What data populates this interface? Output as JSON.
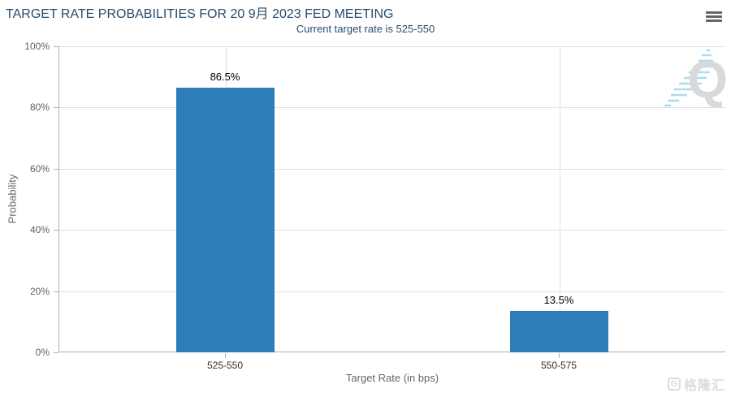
{
  "chart_data": {
    "type": "bar",
    "title": "TARGET RATE PROBABILITIES FOR 20 9月 2023 FED MEETING",
    "subtitle": "Current target rate is 525-550",
    "categories": [
      "525-550",
      "550-575"
    ],
    "values": [
      86.5,
      13.5
    ],
    "value_labels": [
      "86.5%",
      "13.5%"
    ],
    "xlabel": "Target Rate (in bps)",
    "ylabel": "Probability",
    "ylim": [
      0,
      100
    ],
    "yticks": [
      0,
      20,
      40,
      60,
      80,
      100
    ],
    "ytick_labels": [
      "0%",
      "20%",
      "40%",
      "60%",
      "80%",
      "100%"
    ],
    "grid": true,
    "legend": "none",
    "bar_color": "#2c7db8"
  },
  "toolbar": {
    "menu_icon": "hamburger-icon"
  },
  "watermarks": {
    "logo_letter": "Q",
    "site_name": "格隆汇"
  },
  "colors": {
    "title_text": "#274b6d",
    "bar": "#2c7db8",
    "grid_line": "#e0e0e0",
    "axis_line": "#b0b0b0",
    "ytick_label": "#606060",
    "xtick_label": "#333333",
    "axis_title": "#666666",
    "data_label": "#000000",
    "watermark_gray": "#d9d9d9",
    "watermark_blue": "#aadcf0"
  }
}
